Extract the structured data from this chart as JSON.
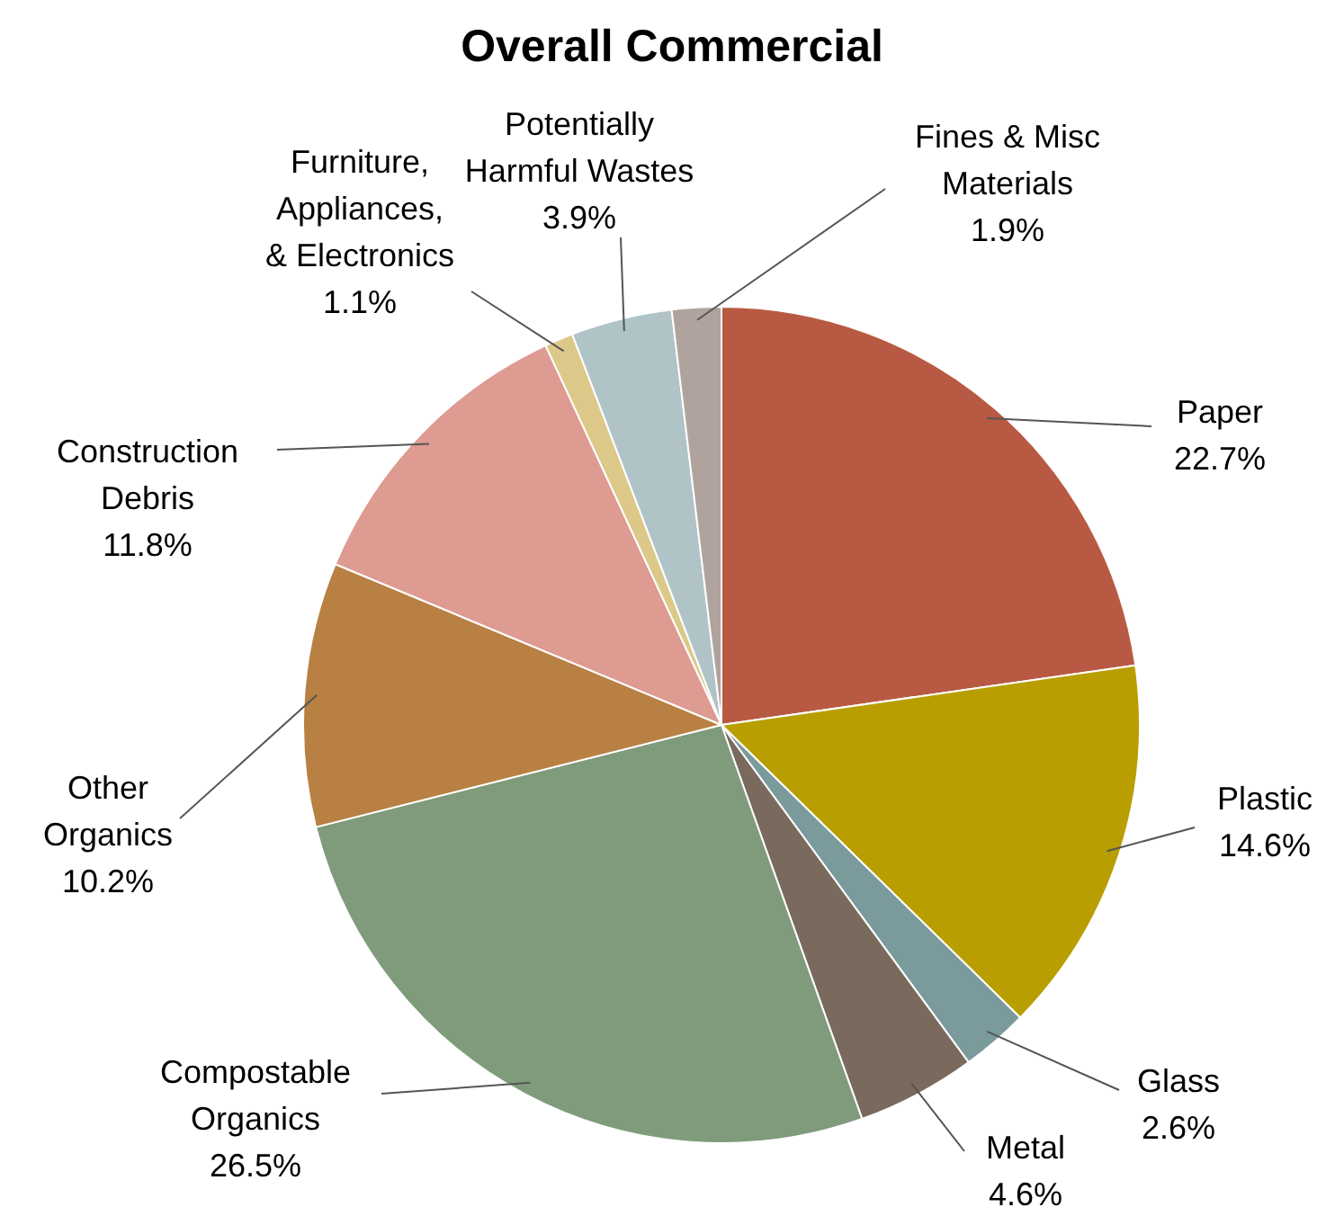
{
  "chart_data": {
    "type": "pie",
    "title": "Overall Commercial",
    "categories": [
      "Paper",
      "Plastic",
      "Glass",
      "Metal",
      "Compostable Organics",
      "Other Organics",
      "Construction Debris",
      "Furniture, Appliances, & Electronics",
      "Potentially Harmful Wastes",
      "Fines & Misc Materials"
    ],
    "values": [
      22.7,
      14.6,
      2.6,
      4.6,
      26.5,
      10.2,
      11.8,
      1.1,
      3.9,
      1.9
    ],
    "value_labels": [
      "22.7%",
      "14.6%",
      "2.6%",
      "4.6%",
      "26.5%",
      "10.2%",
      "11.8%",
      "1.1%",
      "3.9%",
      "1.9%"
    ],
    "colors": [
      "#b85a43",
      "#b89e00",
      "#7a9a9c",
      "#7a6a5e",
      "#7f9b7c",
      "#b88043",
      "#dd9b91",
      "#dcc98a",
      "#b0c4c8",
      "#b0a39e"
    ],
    "legend": false
  }
}
